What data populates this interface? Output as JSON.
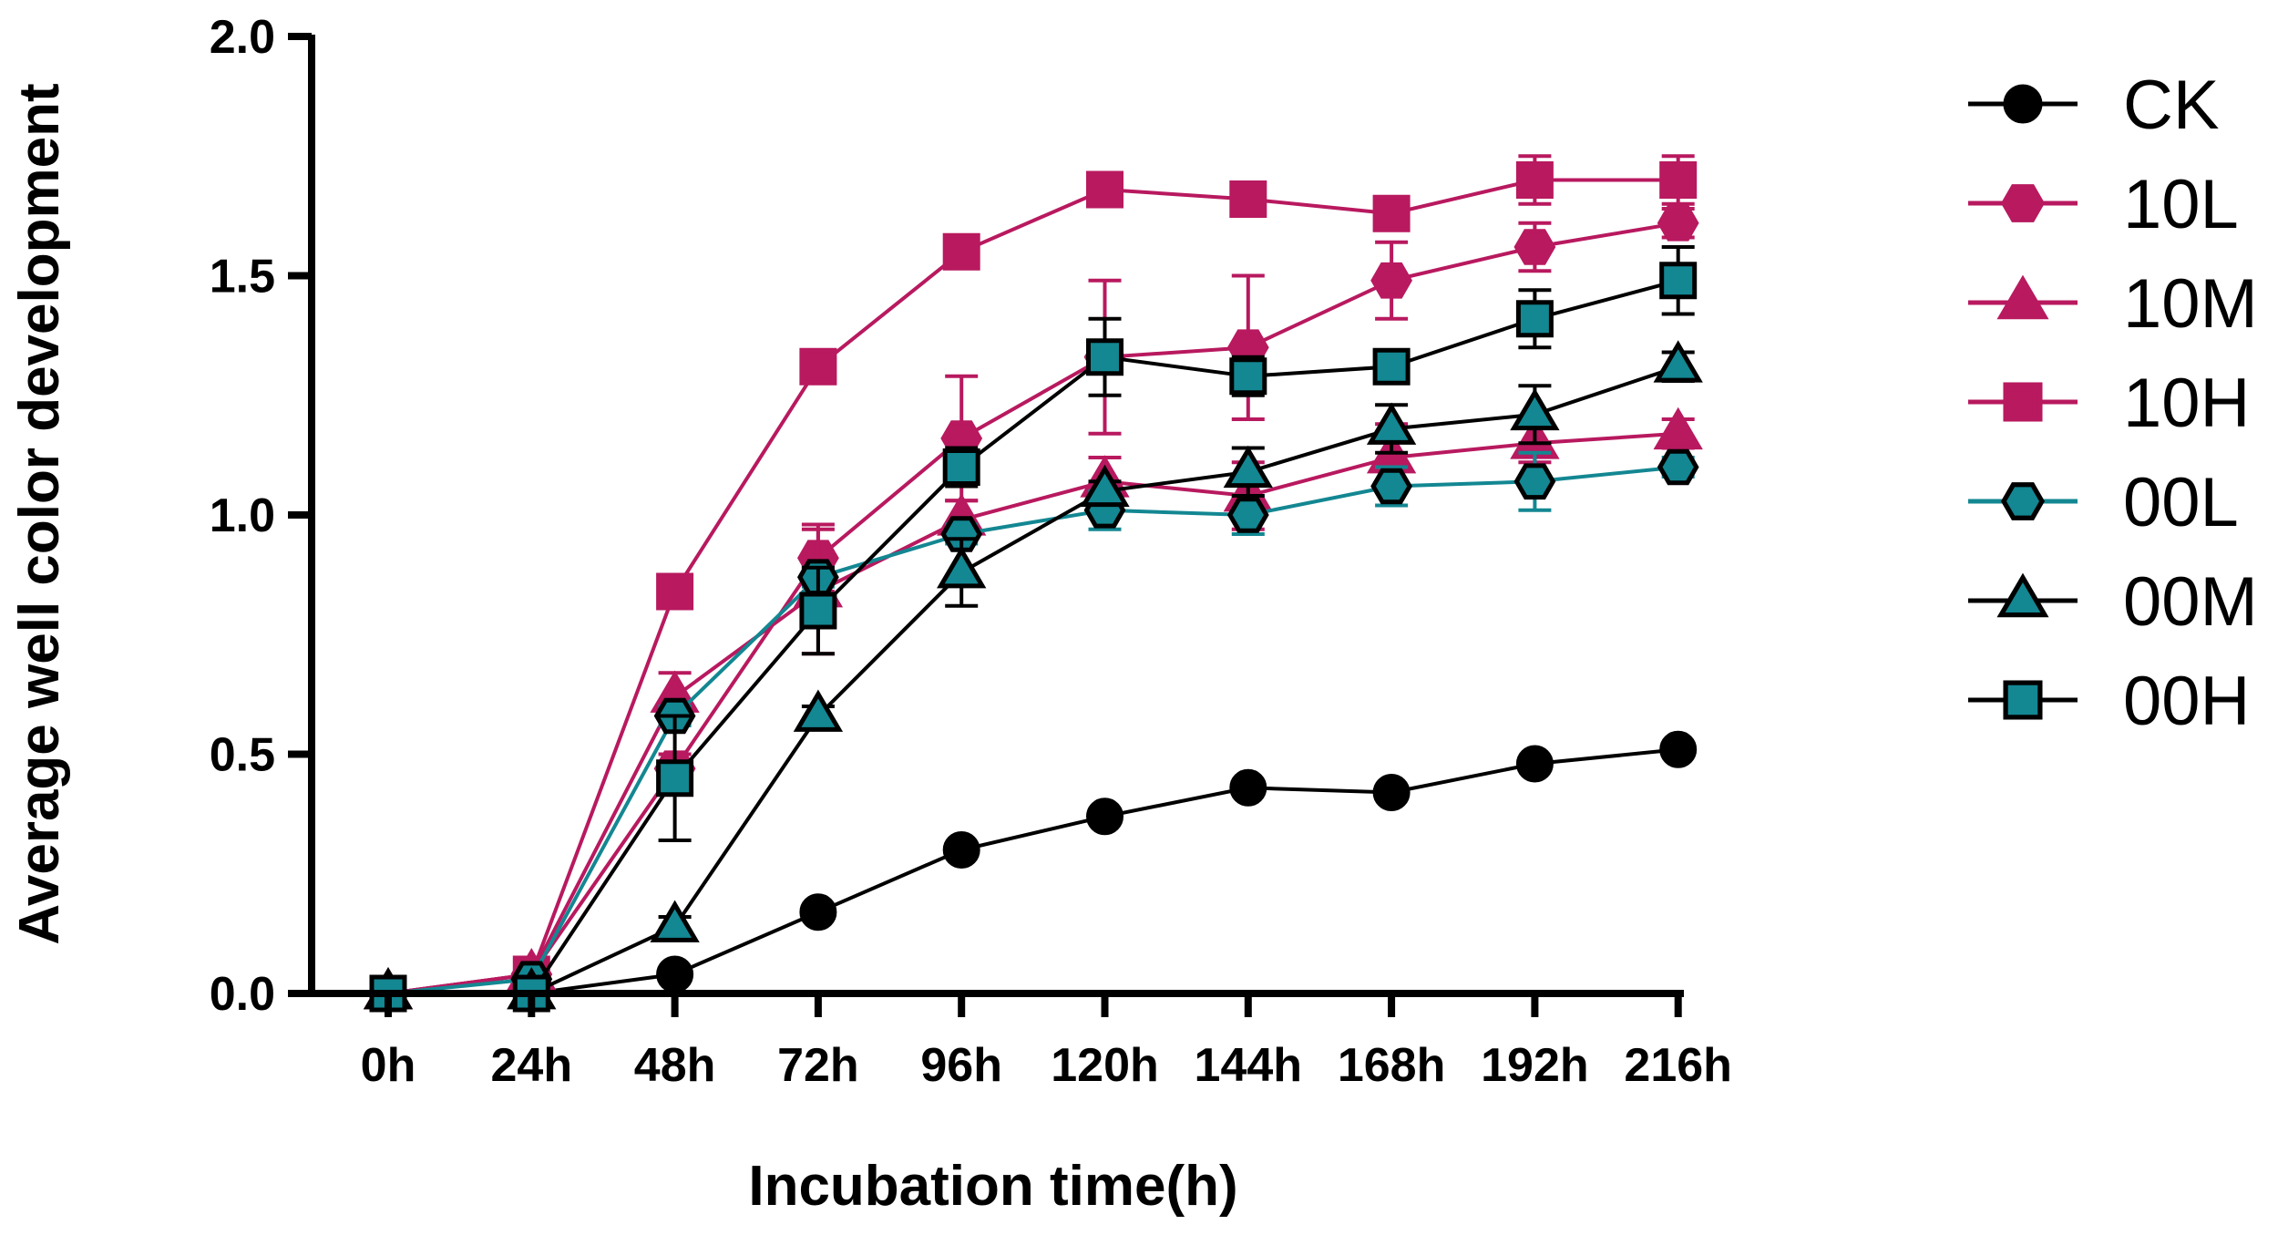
{
  "chart_data": {
    "type": "line",
    "title": "",
    "xlabel": "Incubation time(h)",
    "ylabel": "Average well color development",
    "categories": [
      "0h",
      "24h",
      "48h",
      "72h",
      "96h",
      "120h",
      "144h",
      "168h",
      "192h",
      "216h"
    ],
    "ylim": [
      0,
      2.0
    ],
    "yticks": [
      "0.0",
      "0.5",
      "1.0",
      "1.5",
      "2.0"
    ],
    "ytick_values": [
      0,
      0.5,
      1.0,
      1.5,
      2.0
    ],
    "legend_position": "right",
    "series": [
      {
        "name": "CK",
        "color": "#000000",
        "fill": "#000000",
        "marker": "circle",
        "values": [
          0.0,
          0.0,
          0.04,
          0.17,
          0.3,
          0.37,
          0.43,
          0.42,
          0.48,
          0.51
        ],
        "errors": [
          0.01,
          0.01,
          0.01,
          0.01,
          0.01,
          0.01,
          0.01,
          0.01,
          0.01,
          0.01
        ]
      },
      {
        "name": "10L",
        "color": "#B8195F",
        "fill": "#B8195F",
        "marker": "hexagon",
        "values": [
          0.0,
          0.04,
          0.47,
          0.91,
          1.16,
          1.33,
          1.35,
          1.49,
          1.56,
          1.61
        ],
        "errors": [
          0.01,
          0.01,
          0.03,
          0.07,
          0.13,
          0.16,
          0.15,
          0.08,
          0.05,
          0.03
        ]
      },
      {
        "name": "10M",
        "color": "#B8195F",
        "fill": "#B8195F",
        "marker": "triangle",
        "values": [
          0.0,
          0.04,
          0.62,
          0.84,
          0.99,
          1.07,
          1.04,
          1.12,
          1.15,
          1.17
        ],
        "errors": [
          0.01,
          0.01,
          0.05,
          0.13,
          0.04,
          0.05,
          0.07,
          0.07,
          0.04,
          0.03
        ]
      },
      {
        "name": "10H",
        "color": "#B8195F",
        "fill": "#B8195F",
        "marker": "square",
        "values": [
          0.0,
          0.04,
          0.84,
          1.31,
          1.55,
          1.68,
          1.66,
          1.63,
          1.7,
          1.7
        ],
        "errors": [
          0.01,
          0.01,
          0.03,
          0.02,
          0.02,
          0.02,
          0.02,
          0.02,
          0.05,
          0.05
        ]
      },
      {
        "name": "00L",
        "color": "#138792",
        "fill": "#138792",
        "marker": "hexagon",
        "values": [
          0.0,
          0.03,
          0.58,
          0.87,
          0.96,
          1.01,
          1.0,
          1.06,
          1.07,
          1.1
        ],
        "errors": [
          0.01,
          0.01,
          0.02,
          0.02,
          0.02,
          0.04,
          0.04,
          0.04,
          0.06,
          0.02
        ]
      },
      {
        "name": "00M",
        "color": "#000000",
        "fill": "#138792",
        "marker": "triangle",
        "values": [
          0.0,
          0.0,
          0.14,
          0.58,
          0.88,
          1.05,
          1.09,
          1.18,
          1.21,
          1.31
        ],
        "errors": [
          0.01,
          0.01,
          0.02,
          0.02,
          0.07,
          0.02,
          0.05,
          0.05,
          0.06,
          0.03
        ]
      },
      {
        "name": "00H",
        "color": "#000000",
        "fill": "#138792",
        "marker": "square",
        "values": [
          0.0,
          0.0,
          0.45,
          0.8,
          1.1,
          1.33,
          1.29,
          1.31,
          1.41,
          1.49
        ],
        "errors": [
          0.01,
          0.01,
          0.13,
          0.09,
          0.04,
          0.08,
          0.04,
          0.03,
          0.06,
          0.07
        ]
      }
    ]
  }
}
